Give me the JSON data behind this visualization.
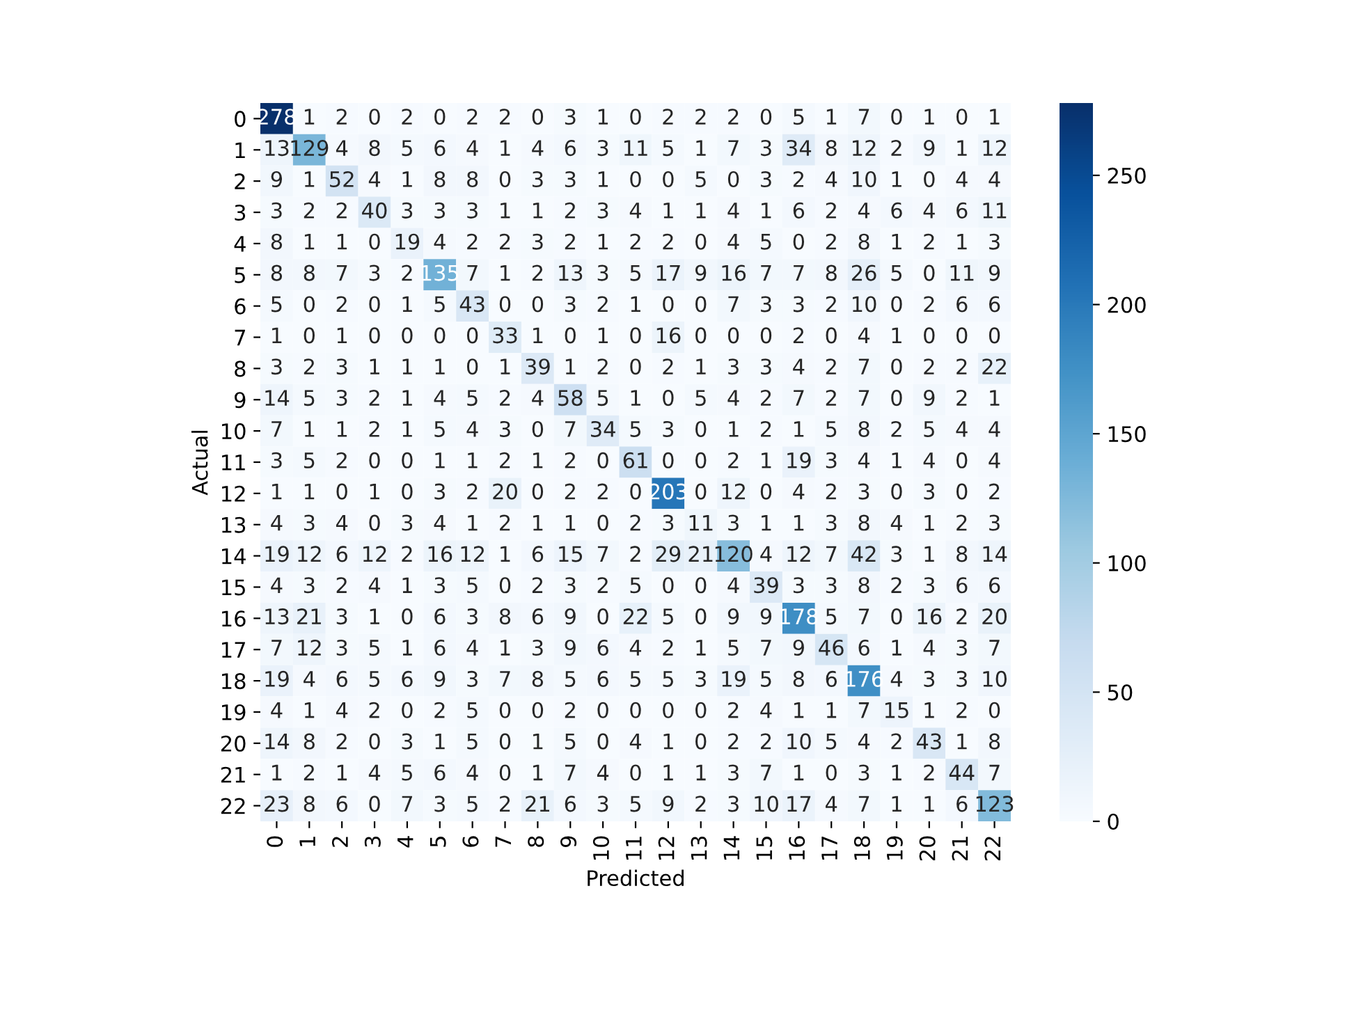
{
  "chart_data": {
    "type": "heatmap",
    "xlabel": "Predicted",
    "ylabel": "Actual",
    "categories": [
      "0",
      "1",
      "2",
      "3",
      "4",
      "5",
      "6",
      "7",
      "8",
      "9",
      "10",
      "11",
      "12",
      "13",
      "14",
      "15",
      "16",
      "17",
      "18",
      "19",
      "20",
      "21",
      "22"
    ],
    "y_categories": [
      "0",
      "1",
      "2",
      "3",
      "4",
      "5",
      "6",
      "7",
      "8",
      "9",
      "10",
      "11",
      "12",
      "13",
      "14",
      "15",
      "16",
      "17",
      "18",
      "19",
      "20",
      "21",
      "22"
    ],
    "cells": [
      [
        278,
        1,
        2,
        0,
        2,
        0,
        2,
        2,
        0,
        3,
        1,
        0,
        2,
        2,
        2,
        0,
        5,
        1,
        7,
        0,
        1,
        0,
        1
      ],
      [
        13,
        129,
        4,
        8,
        5,
        6,
        4,
        1,
        4,
        6,
        3,
        11,
        5,
        1,
        7,
        3,
        34,
        8,
        12,
        2,
        9,
        1,
        12
      ],
      [
        9,
        1,
        52,
        4,
        1,
        8,
        8,
        0,
        3,
        3,
        1,
        0,
        0,
        5,
        0,
        3,
        2,
        4,
        10,
        1,
        0,
        4,
        4
      ],
      [
        3,
        2,
        2,
        40,
        3,
        3,
        3,
        1,
        1,
        2,
        3,
        4,
        1,
        1,
        4,
        1,
        6,
        2,
        4,
        6,
        4,
        6,
        11
      ],
      [
        8,
        1,
        1,
        0,
        19,
        4,
        2,
        2,
        3,
        2,
        1,
        2,
        2,
        0,
        4,
        5,
        0,
        2,
        8,
        1,
        2,
        1,
        3
      ],
      [
        8,
        8,
        7,
        3,
        2,
        135,
        7,
        1,
        2,
        13,
        3,
        5,
        17,
        9,
        16,
        7,
        7,
        8,
        26,
        5,
        0,
        11,
        9
      ],
      [
        5,
        0,
        2,
        0,
        1,
        5,
        43,
        0,
        0,
        3,
        2,
        1,
        0,
        0,
        7,
        3,
        3,
        2,
        10,
        0,
        2,
        6,
        6
      ],
      [
        1,
        0,
        1,
        0,
        0,
        0,
        0,
        33,
        1,
        0,
        1,
        0,
        16,
        0,
        0,
        0,
        2,
        0,
        4,
        1,
        0,
        0,
        0
      ],
      [
        3,
        2,
        3,
        1,
        1,
        1,
        0,
        1,
        39,
        1,
        2,
        0,
        2,
        1,
        3,
        3,
        4,
        2,
        7,
        0,
        2,
        2,
        22
      ],
      [
        14,
        5,
        3,
        2,
        1,
        4,
        5,
        2,
        4,
        58,
        5,
        1,
        0,
        5,
        4,
        2,
        7,
        2,
        7,
        0,
        9,
        2,
        1
      ],
      [
        7,
        1,
        1,
        2,
        1,
        5,
        4,
        3,
        0,
        7,
        34,
        5,
        3,
        0,
        1,
        2,
        1,
        5,
        8,
        2,
        5,
        4,
        4
      ],
      [
        3,
        5,
        2,
        0,
        0,
        1,
        1,
        2,
        1,
        2,
        0,
        61,
        0,
        0,
        2,
        1,
        19,
        3,
        4,
        1,
        4,
        0,
        4
      ],
      [
        1,
        1,
        0,
        1,
        0,
        3,
        2,
        20,
        0,
        2,
        2,
        0,
        203,
        0,
        12,
        0,
        4,
        2,
        3,
        0,
        3,
        0,
        2
      ],
      [
        4,
        3,
        4,
        0,
        3,
        4,
        1,
        2,
        1,
        1,
        0,
        2,
        3,
        11,
        3,
        1,
        1,
        3,
        8,
        4,
        1,
        2,
        3
      ],
      [
        19,
        12,
        6,
        12,
        2,
        16,
        12,
        1,
        6,
        15,
        7,
        2,
        29,
        21,
        120,
        4,
        12,
        7,
        42,
        3,
        1,
        8,
        14
      ],
      [
        4,
        3,
        2,
        4,
        1,
        3,
        5,
        0,
        2,
        3,
        2,
        5,
        0,
        0,
        4,
        39,
        3,
        3,
        8,
        2,
        3,
        6,
        6
      ],
      [
        13,
        21,
        3,
        1,
        0,
        6,
        3,
        8,
        6,
        9,
        0,
        22,
        5,
        0,
        9,
        9,
        178,
        5,
        7,
        0,
        16,
        2,
        20
      ],
      [
        7,
        12,
        3,
        5,
        1,
        6,
        4,
        1,
        3,
        9,
        6,
        4,
        2,
        1,
        5,
        7,
        9,
        46,
        6,
        1,
        4,
        3,
        7
      ],
      [
        19,
        4,
        6,
        5,
        6,
        9,
        3,
        7,
        8,
        5,
        6,
        5,
        5,
        3,
        19,
        5,
        8,
        6,
        176,
        4,
        3,
        3,
        10
      ],
      [
        4,
        1,
        4,
        2,
        0,
        2,
        5,
        0,
        0,
        2,
        0,
        0,
        0,
        0,
        2,
        4,
        1,
        1,
        7,
        15,
        1,
        2,
        0
      ],
      [
        14,
        8,
        2,
        0,
        3,
        1,
        5,
        0,
        1,
        5,
        0,
        4,
        1,
        0,
        2,
        2,
        10,
        5,
        4,
        2,
        43,
        1,
        8
      ],
      [
        1,
        2,
        1,
        4,
        5,
        6,
        4,
        0,
        1,
        7,
        4,
        0,
        1,
        1,
        3,
        7,
        1,
        0,
        3,
        1,
        2,
        44,
        7
      ],
      [
        23,
        8,
        6,
        0,
        7,
        3,
        5,
        2,
        21,
        6,
        3,
        5,
        9,
        2,
        3,
        10,
        17,
        4,
        7,
        1,
        1,
        6,
        123
      ]
    ],
    "clim": [
      0,
      278
    ],
    "cticks": [
      0,
      50,
      100,
      150,
      200,
      250
    ],
    "data_labels": true,
    "grid": false
  }
}
